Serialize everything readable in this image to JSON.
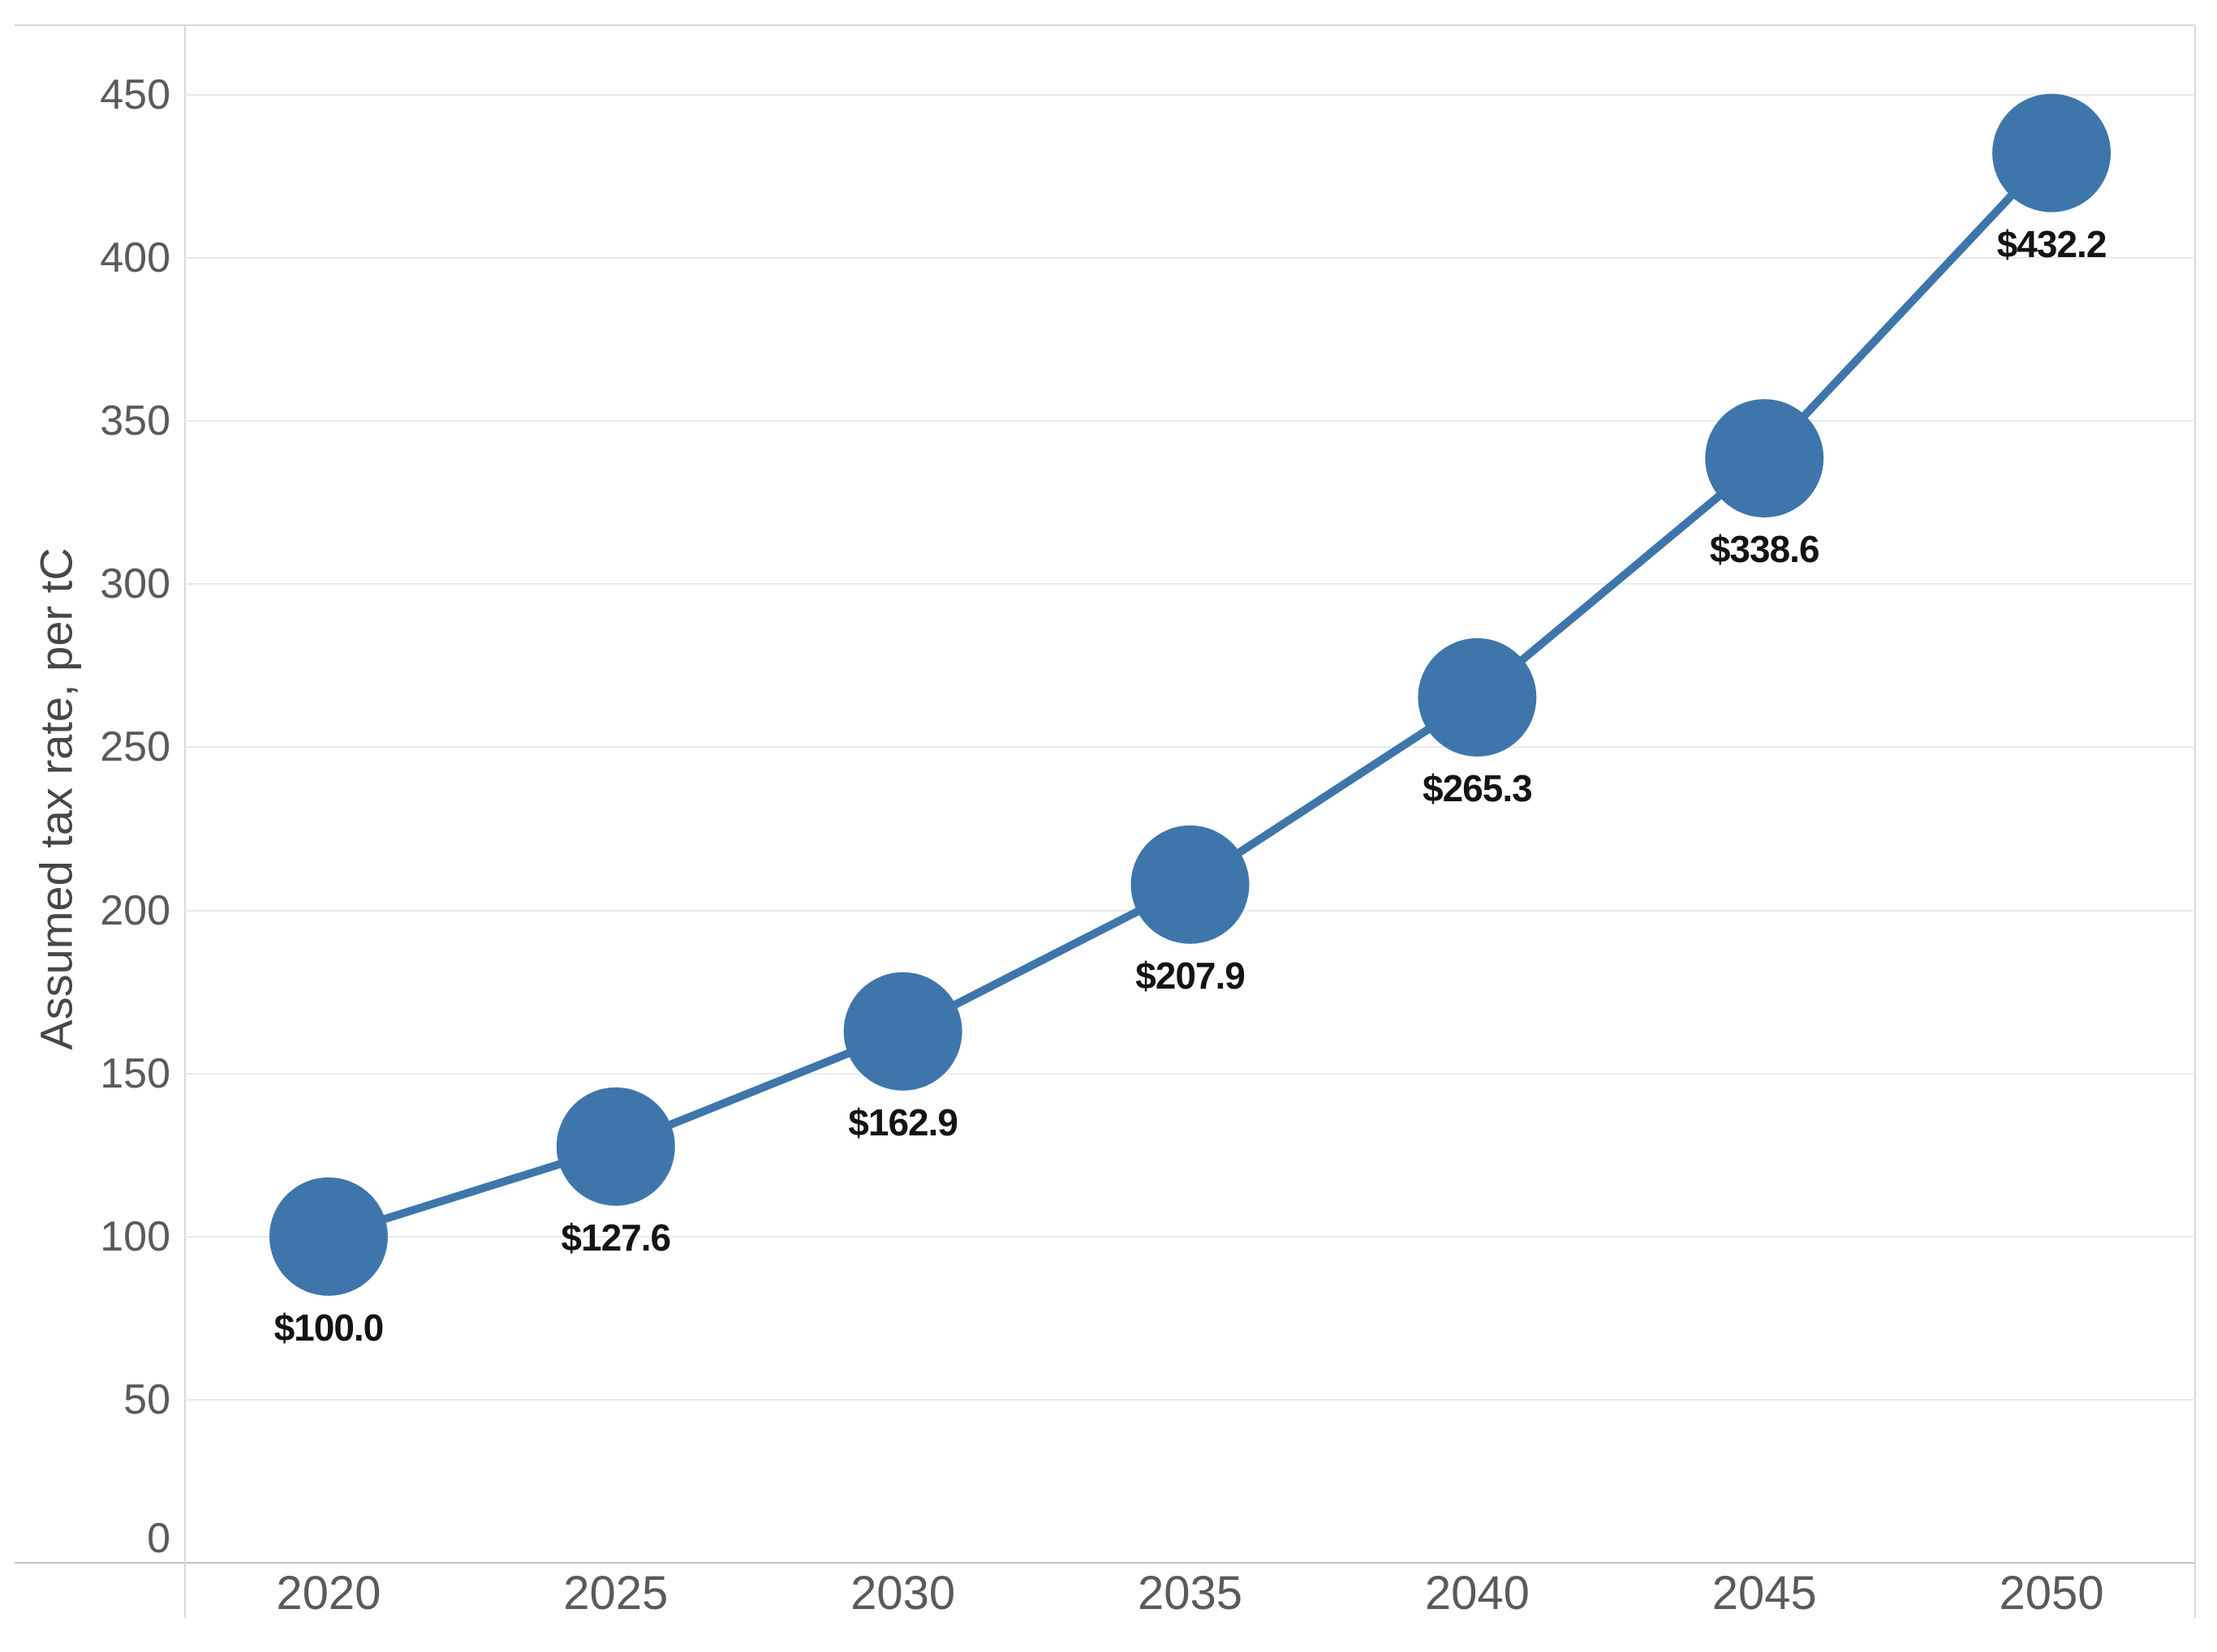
{
  "chart_data": {
    "type": "line",
    "title": "",
    "categories": [
      "2020",
      "2025",
      "2030",
      "2035",
      "2040",
      "2045",
      "2050"
    ],
    "values": [
      100.0,
      127.6,
      162.9,
      207.9,
      265.3,
      338.6,
      432.2
    ],
    "point_labels": [
      "$100.0",
      "$127.6",
      "$162.9",
      "$207.9",
      "$265.3",
      "$338.6",
      "$432.2"
    ],
    "ylabel": "Assumed tax rate, per tC",
    "xlabel": "",
    "ylim": [
      0,
      450
    ],
    "yticks": [
      0,
      50,
      100,
      150,
      200,
      250,
      300,
      350,
      400,
      450
    ],
    "grid": "horizontal-only",
    "legend": "none",
    "marker": "large-circle",
    "series_name": "Assumed tax rate"
  },
  "colors": {
    "series_blue": "#3E76AB",
    "gridline": "#EAEAEA",
    "axis_bottom": "#C2C2C2",
    "pane_border": "#D8D8D8",
    "tick_text": "#5A5A5A",
    "axis_title_text": "#474747",
    "data_label_text": "#141414"
  }
}
